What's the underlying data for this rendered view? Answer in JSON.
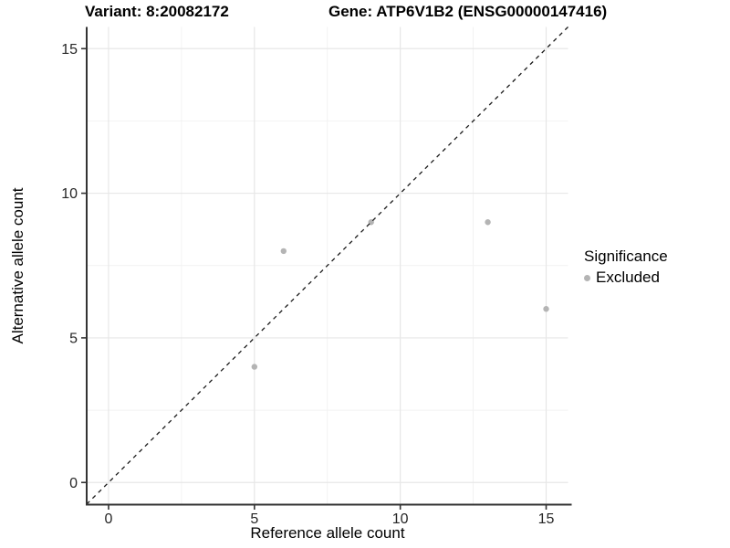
{
  "chart_data": {
    "type": "scatter",
    "title_left": "Variant: 8:20082172",
    "title_right": "Gene: ATP6V1B2 (ENSG00000147416)",
    "xlabel": "Reference allele count",
    "ylabel": "Alternative allele count",
    "xlim": [
      -0.75,
      15.75
    ],
    "ylim": [
      -0.75,
      15.75
    ],
    "xticks": [
      0,
      5,
      10,
      15
    ],
    "yticks": [
      0,
      5,
      10,
      15
    ],
    "xminor": [
      2.5,
      7.5,
      12.5
    ],
    "yminor": [
      2.5,
      7.5,
      12.5
    ],
    "grid": true,
    "identity_line": {
      "equation": "y = x",
      "style": "dashed"
    },
    "series": [
      {
        "name": "Excluded",
        "color": "#b4b4b4",
        "points": [
          [
            5,
            4
          ],
          [
            6,
            8
          ],
          [
            9,
            9
          ],
          [
            13,
            9
          ],
          [
            15,
            6
          ]
        ]
      }
    ],
    "legend": {
      "position": "right",
      "title": "Significance",
      "entries": [
        {
          "label": "Excluded",
          "color": "#b4b4b4"
        }
      ]
    },
    "colors": {
      "grid_major": "#e7e7e7",
      "grid_minor": "#f2f2f2",
      "axis_line": "#333333",
      "tick_label": "#262626",
      "identity_line": "#1a1a1a",
      "background": "#ffffff"
    }
  }
}
